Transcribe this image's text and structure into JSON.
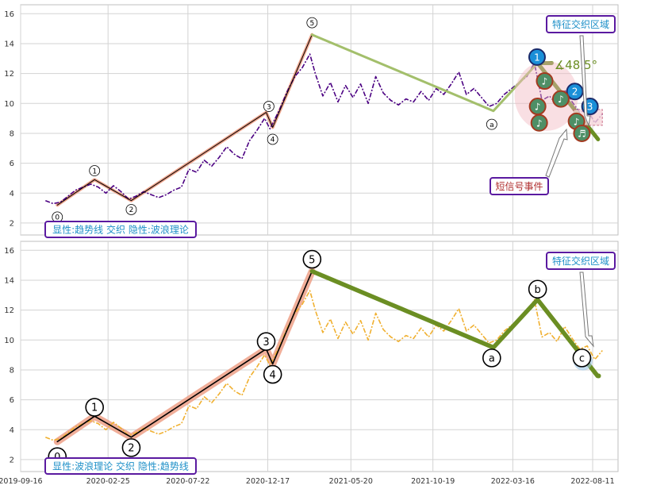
{
  "chart_data": [
    {
      "type": "line",
      "yticks": [
        2,
        4,
        6,
        8,
        10,
        12,
        14,
        16
      ],
      "ylim": [
        1.2,
        16.6
      ],
      "xlim": [
        "2019-09-16",
        "2022-09-27"
      ],
      "grid": true,
      "legend_box": "显性:趋势线 交织 隐性:波浪理论",
      "zone_label": "特征交织区域",
      "event_label": "短信号事件",
      "angle_label": "∡48.5°",
      "price_color": "#4b0082",
      "wave_labels": [
        {
          "label": "0",
          "date": "2019-11-23",
          "value": 2.4
        },
        {
          "label": "1",
          "date": "2020-01-31",
          "value": 5.5
        },
        {
          "label": "2",
          "date": "2020-04-08",
          "value": 2.9
        },
        {
          "label": "3",
          "date": "2020-12-19",
          "value": 9.8
        },
        {
          "label": "4",
          "date": "2020-12-26",
          "value": 7.6
        },
        {
          "label": "5",
          "date": "2021-03-09",
          "value": 15.4
        },
        {
          "label": "a",
          "date": "2022-02-05",
          "value": 8.6
        }
      ],
      "wave_path": [
        {
          "date": "2019-11-23",
          "value": 3.2
        },
        {
          "date": "2020-01-31",
          "value": 4.9
        },
        {
          "date": "2020-04-08",
          "value": 3.5
        },
        {
          "date": "2020-12-14",
          "value": 9.4
        },
        {
          "date": "2020-12-26",
          "value": 8.4
        },
        {
          "date": "2021-03-09",
          "value": 14.6
        }
      ],
      "trend_segment": [
        {
          "date": "2021-03-09",
          "value": 14.6
        },
        {
          "date": "2022-02-08",
          "value": 9.5
        },
        {
          "date": "2022-05-01",
          "value": 12.7
        }
      ],
      "event_markers": [
        {
          "label": "1",
          "kind": "blue",
          "date": "2022-04-30",
          "value": 13.1
        },
        {
          "label": "2",
          "kind": "blue",
          "date": "2022-07-09",
          "value": 10.8
        },
        {
          "label": "3",
          "kind": "blue",
          "date": "2022-08-06",
          "value": 9.8
        },
        {
          "label": "♪",
          "kind": "green",
          "date": "2022-05-14",
          "value": 11.5
        },
        {
          "label": "♪",
          "kind": "green",
          "date": "2022-05-01",
          "value": 9.8
        },
        {
          "label": "♪",
          "kind": "green",
          "date": "2022-05-04",
          "value": 8.7
        },
        {
          "label": "♪",
          "kind": "green",
          "date": "2022-06-13",
          "value": 10.3
        },
        {
          "label": "♪",
          "kind": "green",
          "date": "2022-07-12",
          "value": 8.8
        },
        {
          "label": "♬",
          "kind": "green",
          "date": "2022-07-22",
          "value": 8.0
        }
      ]
    },
    {
      "type": "line",
      "yticks": [
        2,
        4,
        6,
        8,
        10,
        12,
        14,
        16
      ],
      "ylim": [
        1.2,
        16.6
      ],
      "xlim": [
        "2019-09-16",
        "2022-09-27"
      ],
      "grid": true,
      "legend_box": "显性:波浪理论 交织 隐性:趋势线",
      "zone_label": "特征交织区域",
      "price_color": "#f0b030",
      "wave_labels": [
        {
          "label": "0",
          "date": "2019-11-23",
          "value": 2.2
        },
        {
          "label": "1",
          "date": "2020-01-31",
          "value": 5.5
        },
        {
          "label": "2",
          "date": "2020-04-08",
          "value": 2.8
        },
        {
          "label": "3",
          "date": "2020-12-14",
          "value": 9.9
        },
        {
          "label": "4",
          "date": "2020-12-26",
          "value": 7.7
        },
        {
          "label": "5",
          "date": "2021-03-09",
          "value": 15.4
        },
        {
          "label": "a",
          "date": "2022-02-05",
          "value": 8.8
        },
        {
          "label": "b",
          "date": "2022-05-01",
          "value": 13.4
        },
        {
          "label": "c",
          "date": "2022-07-22",
          "value": 8.8
        }
      ],
      "wave_path": [
        {
          "date": "2019-11-23",
          "value": 3.2
        },
        {
          "date": "2020-01-31",
          "value": 4.9
        },
        {
          "date": "2020-04-08",
          "value": 3.5
        },
        {
          "date": "2020-12-14",
          "value": 9.4
        },
        {
          "date": "2020-12-26",
          "value": 8.4
        },
        {
          "date": "2021-03-09",
          "value": 14.6
        },
        {
          "date": "2022-02-08",
          "value": 9.5
        },
        {
          "date": "2022-05-01",
          "value": 12.7
        },
        {
          "date": "2022-08-20",
          "value": 7.6
        }
      ]
    }
  ],
  "x_axis": {
    "ticks": [
      "2019-09-16",
      "2020-02-25",
      "2020-07-22",
      "2020-12-17",
      "2021-05-20",
      "2021-10-19",
      "2022-03-16",
      "2022-08-11"
    ]
  },
  "price_series": [
    {
      "date": "2019-11-01",
      "value": 3.5
    },
    {
      "date": "2019-11-15",
      "value": 3.3
    },
    {
      "date": "2019-11-29",
      "value": 3.4
    },
    {
      "date": "2019-12-13",
      "value": 3.8
    },
    {
      "date": "2019-12-27",
      "value": 4.2
    },
    {
      "date": "2020-01-10",
      "value": 4.4
    },
    {
      "date": "2020-01-24",
      "value": 4.6
    },
    {
      "date": "2020-02-07",
      "value": 4.4
    },
    {
      "date": "2020-02-21",
      "value": 4.0
    },
    {
      "date": "2020-03-06",
      "value": 4.5
    },
    {
      "date": "2020-03-20",
      "value": 4.1
    },
    {
      "date": "2020-04-03",
      "value": 3.6
    },
    {
      "date": "2020-04-17",
      "value": 3.8
    },
    {
      "date": "2020-05-01",
      "value": 4.1
    },
    {
      "date": "2020-05-15",
      "value": 3.9
    },
    {
      "date": "2020-05-29",
      "value": 3.7
    },
    {
      "date": "2020-06-12",
      "value": 3.9
    },
    {
      "date": "2020-06-26",
      "value": 4.2
    },
    {
      "date": "2020-07-10",
      "value": 4.4
    },
    {
      "date": "2020-07-24",
      "value": 5.6
    },
    {
      "date": "2020-08-07",
      "value": 5.4
    },
    {
      "date": "2020-08-21",
      "value": 6.2
    },
    {
      "date": "2020-09-04",
      "value": 5.8
    },
    {
      "date": "2020-09-18",
      "value": 6.4
    },
    {
      "date": "2020-10-02",
      "value": 7.1
    },
    {
      "date": "2020-10-16",
      "value": 6.6
    },
    {
      "date": "2020-10-30",
      "value": 6.3
    },
    {
      "date": "2020-11-13",
      "value": 7.5
    },
    {
      "date": "2020-11-27",
      "value": 8.2
    },
    {
      "date": "2020-12-11",
      "value": 9.0
    },
    {
      "date": "2020-12-21",
      "value": 8.3
    },
    {
      "date": "2021-01-08",
      "value": 9.6
    },
    {
      "date": "2021-01-22",
      "value": 10.8
    },
    {
      "date": "2021-02-05",
      "value": 11.8
    },
    {
      "date": "2021-02-19",
      "value": 12.4
    },
    {
      "date": "2021-03-05",
      "value": 13.3
    },
    {
      "date": "2021-03-15",
      "value": 12.0
    },
    {
      "date": "2021-03-29",
      "value": 10.5
    },
    {
      "date": "2021-04-12",
      "value": 11.4
    },
    {
      "date": "2021-04-26",
      "value": 10.1
    },
    {
      "date": "2021-05-10",
      "value": 11.2
    },
    {
      "date": "2021-05-24",
      "value": 10.4
    },
    {
      "date": "2021-06-07",
      "value": 11.3
    },
    {
      "date": "2021-06-21",
      "value": 10.0
    },
    {
      "date": "2021-07-05",
      "value": 11.8
    },
    {
      "date": "2021-07-19",
      "value": 10.7
    },
    {
      "date": "2021-08-02",
      "value": 10.2
    },
    {
      "date": "2021-08-16",
      "value": 9.9
    },
    {
      "date": "2021-08-30",
      "value": 10.3
    },
    {
      "date": "2021-09-13",
      "value": 10.1
    },
    {
      "date": "2021-09-27",
      "value": 10.8
    },
    {
      "date": "2021-10-11",
      "value": 10.2
    },
    {
      "date": "2021-10-25",
      "value": 11.0
    },
    {
      "date": "2021-11-08",
      "value": 10.6
    },
    {
      "date": "2021-11-22",
      "value": 11.3
    },
    {
      "date": "2021-12-06",
      "value": 12.1
    },
    {
      "date": "2021-12-20",
      "value": 10.6
    },
    {
      "date": "2022-01-03",
      "value": 11.0
    },
    {
      "date": "2022-01-17",
      "value": 10.4
    },
    {
      "date": "2022-01-31",
      "value": 9.8
    },
    {
      "date": "2022-02-14",
      "value": 10.0
    },
    {
      "date": "2022-02-28",
      "value": 10.6
    },
    {
      "date": "2022-03-14",
      "value": 11.0
    },
    {
      "date": "2022-03-28",
      "value": 11.4
    },
    {
      "date": "2022-04-11",
      "value": 11.8
    },
    {
      "date": "2022-04-25",
      "value": 12.7
    },
    {
      "date": "2022-05-09",
      "value": 10.2
    },
    {
      "date": "2022-05-23",
      "value": 10.5
    },
    {
      "date": "2022-06-06",
      "value": 9.9
    },
    {
      "date": "2022-06-20",
      "value": 10.9
    },
    {
      "date": "2022-07-04",
      "value": 10.1
    },
    {
      "date": "2022-07-18",
      "value": 9.4
    },
    {
      "date": "2022-08-01",
      "value": 9.6
    },
    {
      "date": "2022-08-15",
      "value": 8.7
    },
    {
      "date": "2022-08-29",
      "value": 9.3
    }
  ],
  "colors": {
    "frame": "#bfbfbf",
    "grid": "#d3d3d3",
    "label_text": "#1f90c8",
    "box_border": "#5a1aa0",
    "wave_glow": "#ec9a80",
    "trend_green": "#6b8e23",
    "trend_green_light": "#a3bf6b",
    "event_text": "#b03030",
    "angle_text": "#6b8e23"
  }
}
